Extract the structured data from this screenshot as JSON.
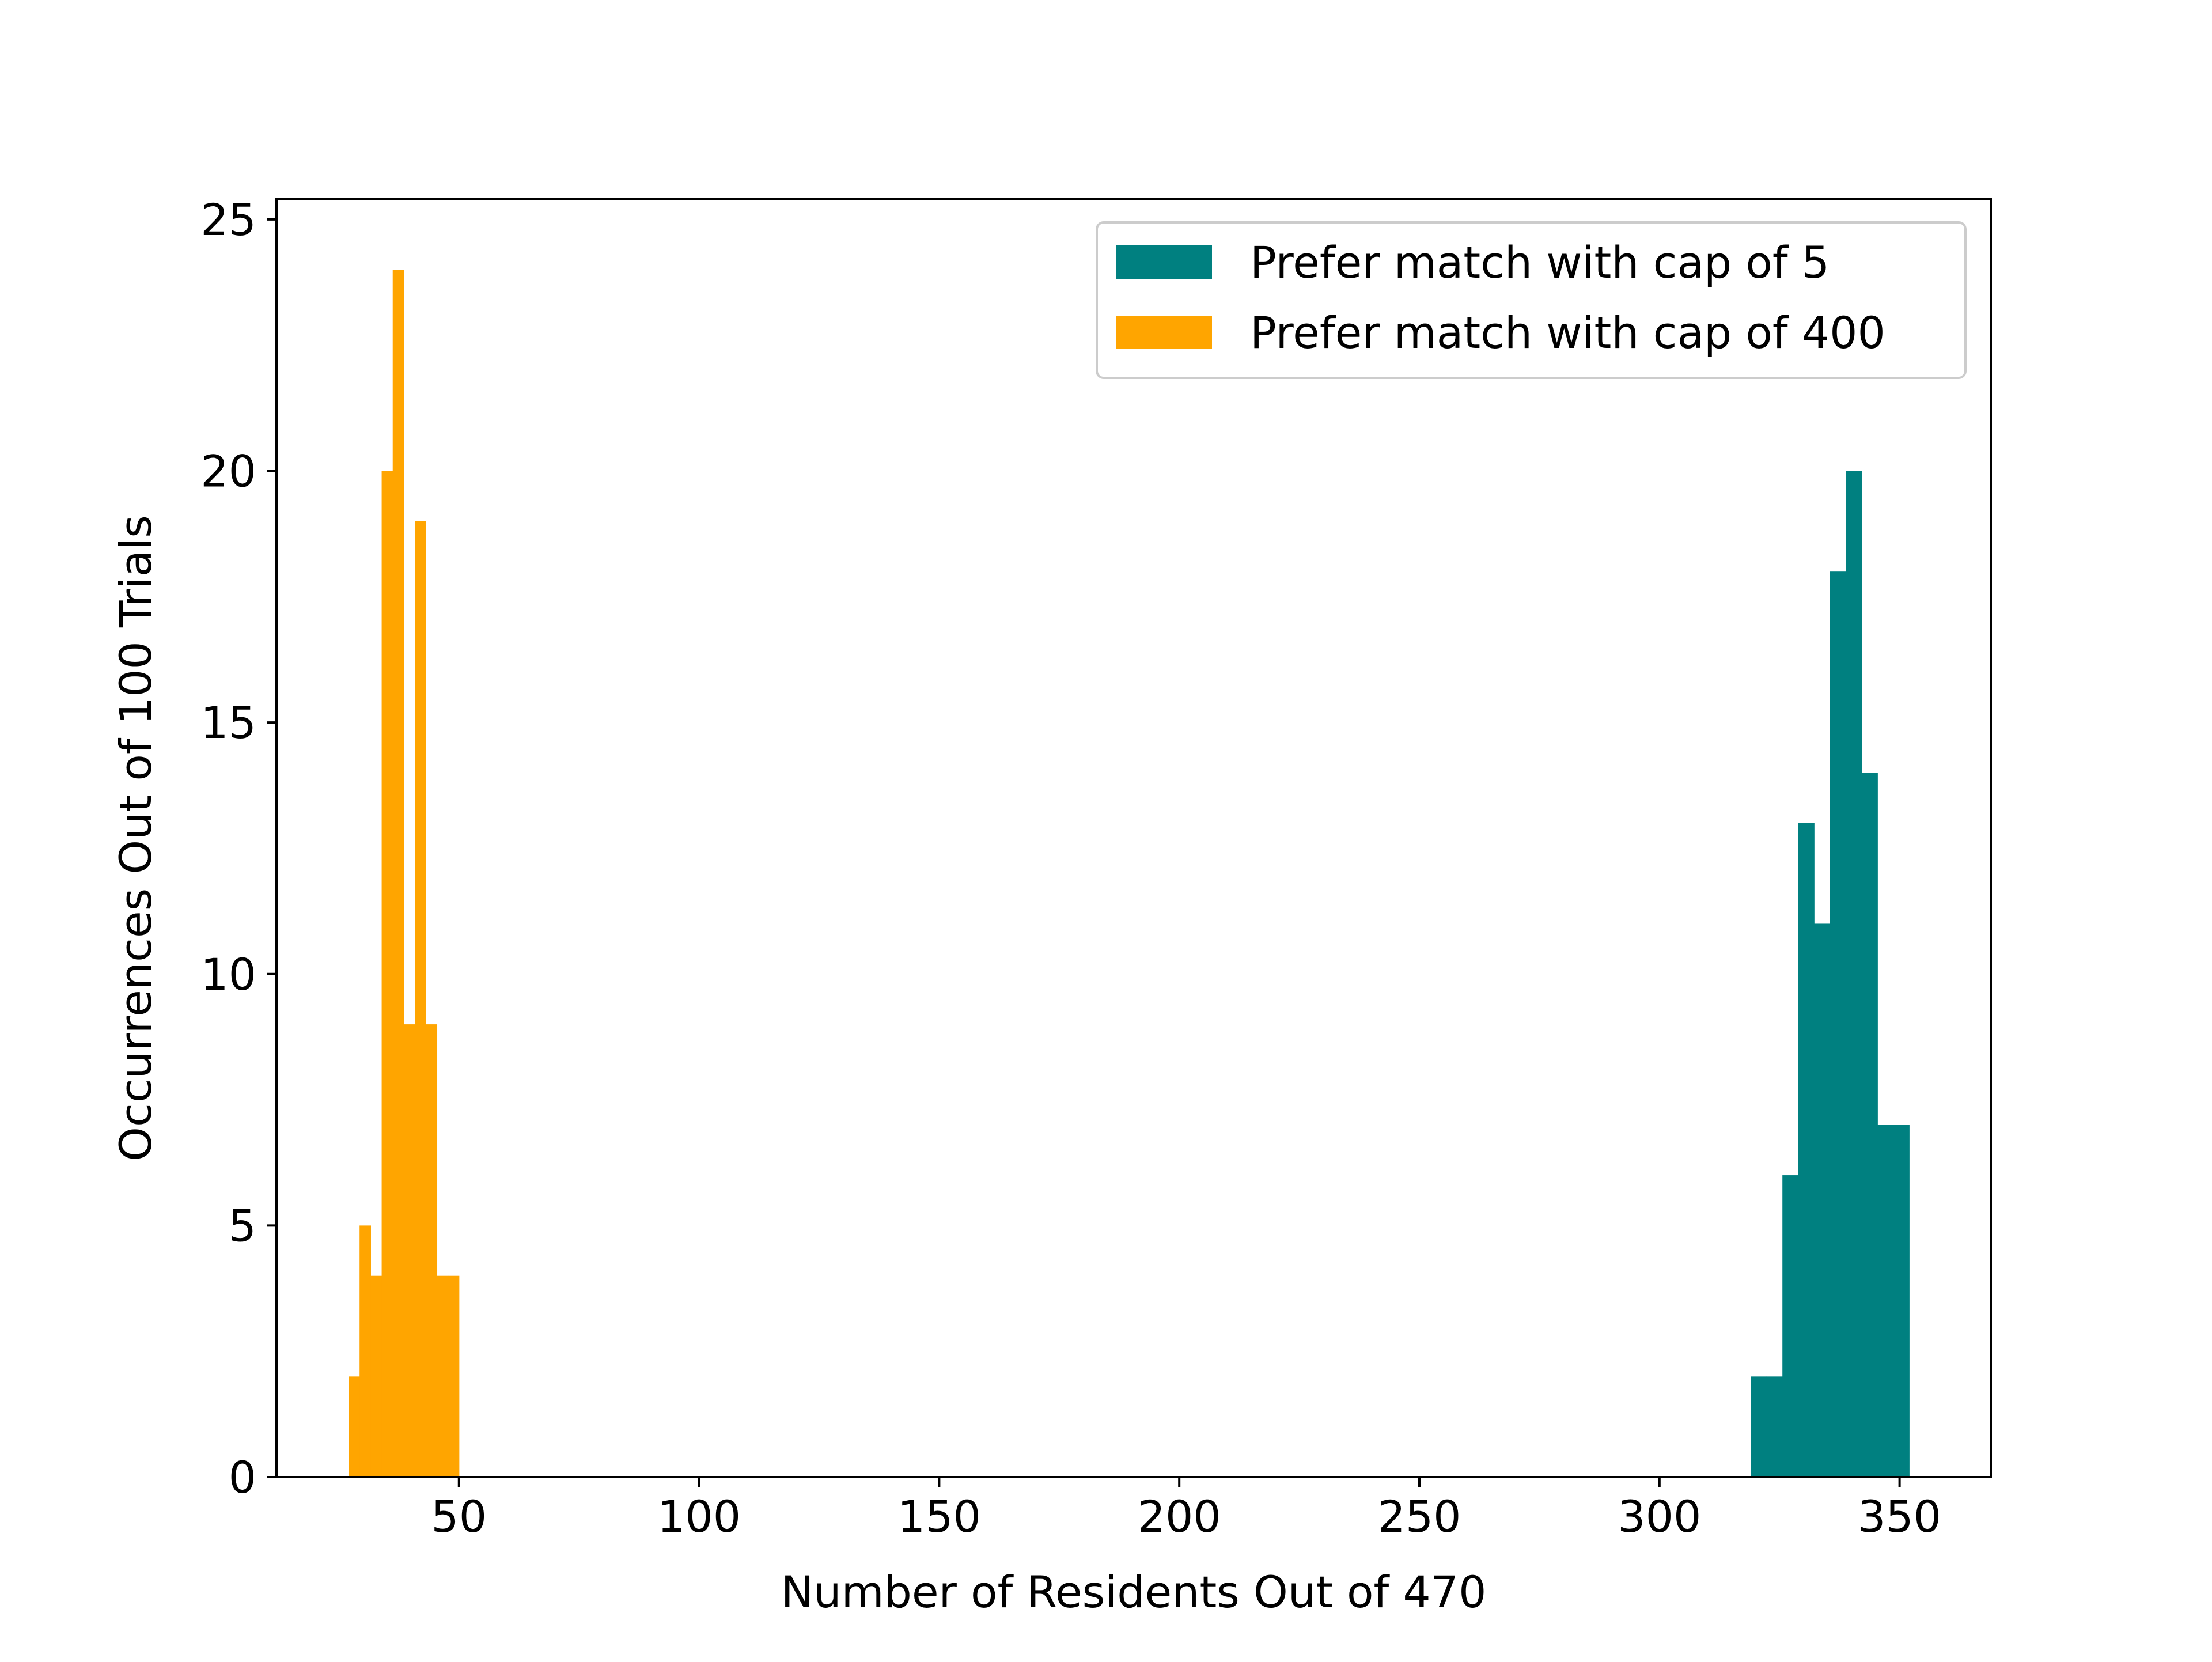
{
  "chart_data": {
    "type": "bar",
    "title": "",
    "xlabel": "Number of Residents Out of 470",
    "ylabel": "Occurrences Out of 100 Trials",
    "xlim": [
      12,
      369
    ],
    "ylim": [
      0,
      25.4
    ],
    "xticks": [
      50,
      100,
      150,
      200,
      250,
      300,
      350
    ],
    "yticks": [
      0,
      5,
      10,
      15,
      20,
      25
    ],
    "legend_position": "top-right",
    "series": [
      {
        "name": "Prefer match with cap of 5",
        "color": "#008080",
        "bins": [
          {
            "start": 319.0,
            "end": 322.3,
            "count": 2
          },
          {
            "start": 322.3,
            "end": 325.6,
            "count": 2
          },
          {
            "start": 325.6,
            "end": 328.9,
            "count": 6
          },
          {
            "start": 328.9,
            "end": 332.2,
            "count": 13
          },
          {
            "start": 332.2,
            "end": 335.5,
            "count": 11
          },
          {
            "start": 335.5,
            "end": 338.8,
            "count": 18
          },
          {
            "start": 338.8,
            "end": 342.1,
            "count": 20
          },
          {
            "start": 342.1,
            "end": 345.4,
            "count": 14
          },
          {
            "start": 345.4,
            "end": 348.7,
            "count": 7
          },
          {
            "start": 348.7,
            "end": 352.0,
            "count": 7
          }
        ]
      },
      {
        "name": "Prefer match with cap of 400",
        "color": "#FFA500",
        "bins": [
          {
            "start": 27.0,
            "end": 29.3,
            "count": 2
          },
          {
            "start": 29.3,
            "end": 31.6,
            "count": 5
          },
          {
            "start": 31.6,
            "end": 33.9,
            "count": 4
          },
          {
            "start": 33.9,
            "end": 36.2,
            "count": 20
          },
          {
            "start": 36.2,
            "end": 38.5,
            "count": 24
          },
          {
            "start": 38.5,
            "end": 40.8,
            "count": 9
          },
          {
            "start": 40.8,
            "end": 43.1,
            "count": 19
          },
          {
            "start": 43.1,
            "end": 45.4,
            "count": 9
          },
          {
            "start": 45.4,
            "end": 47.7,
            "count": 4
          },
          {
            "start": 47.7,
            "end": 50.0,
            "count": 4
          }
        ]
      }
    ]
  }
}
